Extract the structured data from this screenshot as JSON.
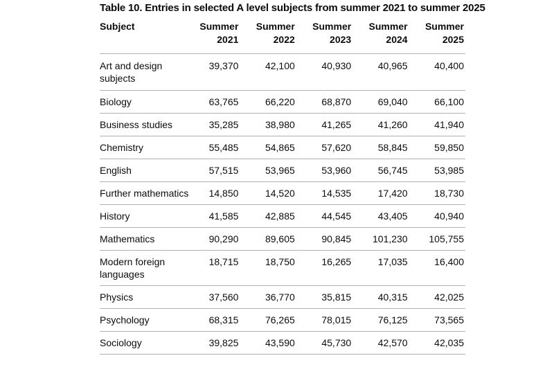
{
  "caption": "Table 10. Entries in selected A level subjects from summer 2021 to summer 2025",
  "headers": {
    "subject": "Subject",
    "years": [
      {
        "line1": "Summer",
        "line2": "2021"
      },
      {
        "line1": "Summer",
        "line2": "2022"
      },
      {
        "line1": "Summer",
        "line2": "2023"
      },
      {
        "line1": "Summer",
        "line2": "2024"
      },
      {
        "line1": "Summer",
        "line2": "2025"
      }
    ]
  },
  "rows": [
    {
      "subject": "Art and design subjects",
      "values": [
        "39,370",
        "42,100",
        "40,930",
        "40,965",
        "40,400"
      ]
    },
    {
      "subject": "Biology",
      "values": [
        "63,765",
        "66,220",
        "68,870",
        "69,040",
        "66,100"
      ]
    },
    {
      "subject": "Business studies",
      "values": [
        "35,285",
        "38,980",
        "41,265",
        "41,260",
        "41,940"
      ]
    },
    {
      "subject": "Chemistry",
      "values": [
        "55,485",
        "54,865",
        "57,620",
        "58,845",
        "59,850"
      ]
    },
    {
      "subject": "English",
      "values": [
        "57,515",
        "53,965",
        "53,960",
        "56,745",
        "53,985"
      ]
    },
    {
      "subject": "Further mathematics",
      "values": [
        "14,850",
        "14,520",
        "14,535",
        "17,420",
        "18,730"
      ]
    },
    {
      "subject": "History",
      "values": [
        "41,585",
        "42,885",
        "44,545",
        "43,405",
        "40,940"
      ]
    },
    {
      "subject": "Mathematics",
      "values": [
        "90,290",
        "89,605",
        "90,845",
        "101,230",
        "105,755"
      ]
    },
    {
      "subject": "Modern foreign languages",
      "values": [
        "18,715",
        "18,750",
        "16,265",
        "17,035",
        "16,400"
      ]
    },
    {
      "subject": "Physics",
      "values": [
        "37,560",
        "36,770",
        "35,815",
        "40,315",
        "42,025"
      ]
    },
    {
      "subject": "Psychology",
      "values": [
        "68,315",
        "76,265",
        "78,015",
        "76,125",
        "73,565"
      ]
    },
    {
      "subject": "Sociology",
      "values": [
        "39,825",
        "43,590",
        "45,730",
        "42,570",
        "42,035"
      ]
    }
  ]
}
